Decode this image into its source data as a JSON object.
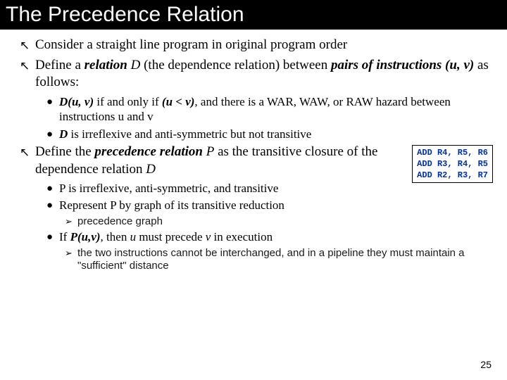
{
  "title": "The Precedence Relation",
  "page_number": "25",
  "bullets": {
    "b1": {
      "pre": "Consider a straight line program in original program order"
    },
    "b2": {
      "pre": "Define a ",
      "rel": "relation",
      "d": " D",
      "mid": " (the dependence relation) between ",
      "pairs": "pairs of instructions (u, v)",
      "post": " as follows:"
    },
    "b2a": {
      "d": "D(u, v)",
      "m1": " if and only if ",
      "uv": "(u < v)",
      "m2": ", and there is a WAR, WAW, or RAW hazard between instructions u and v"
    },
    "b2b": {
      "d": "D",
      "post": " is irreflexive and anti-symmetric but not transitive"
    },
    "b3": {
      "pre": "Define the ",
      "prec": "precedence relation",
      "p": " P",
      "mid": " as the transitive closure of the dependence relation ",
      "d": "D"
    },
    "b3a": "P is irreflexive, anti-symmetric, and transitive",
    "b3b": "Represent P by graph of its transitive reduction",
    "b3b1": "precedence graph",
    "b3c": {
      "pre": "If ",
      "puv": "P(u,v)",
      "m1": ", then ",
      "u": "u",
      "m2": " must precede ",
      "v": "v",
      "post": " in execution"
    },
    "b3c1": "the two instructions cannot be interchanged, and in a pipeline they must maintain a \"sufficient\" distance"
  },
  "code": {
    "l1": "ADD R4, R5, R6",
    "l2": "ADD R3, R4, R5",
    "l3": "ADD R2, R3, R7"
  }
}
